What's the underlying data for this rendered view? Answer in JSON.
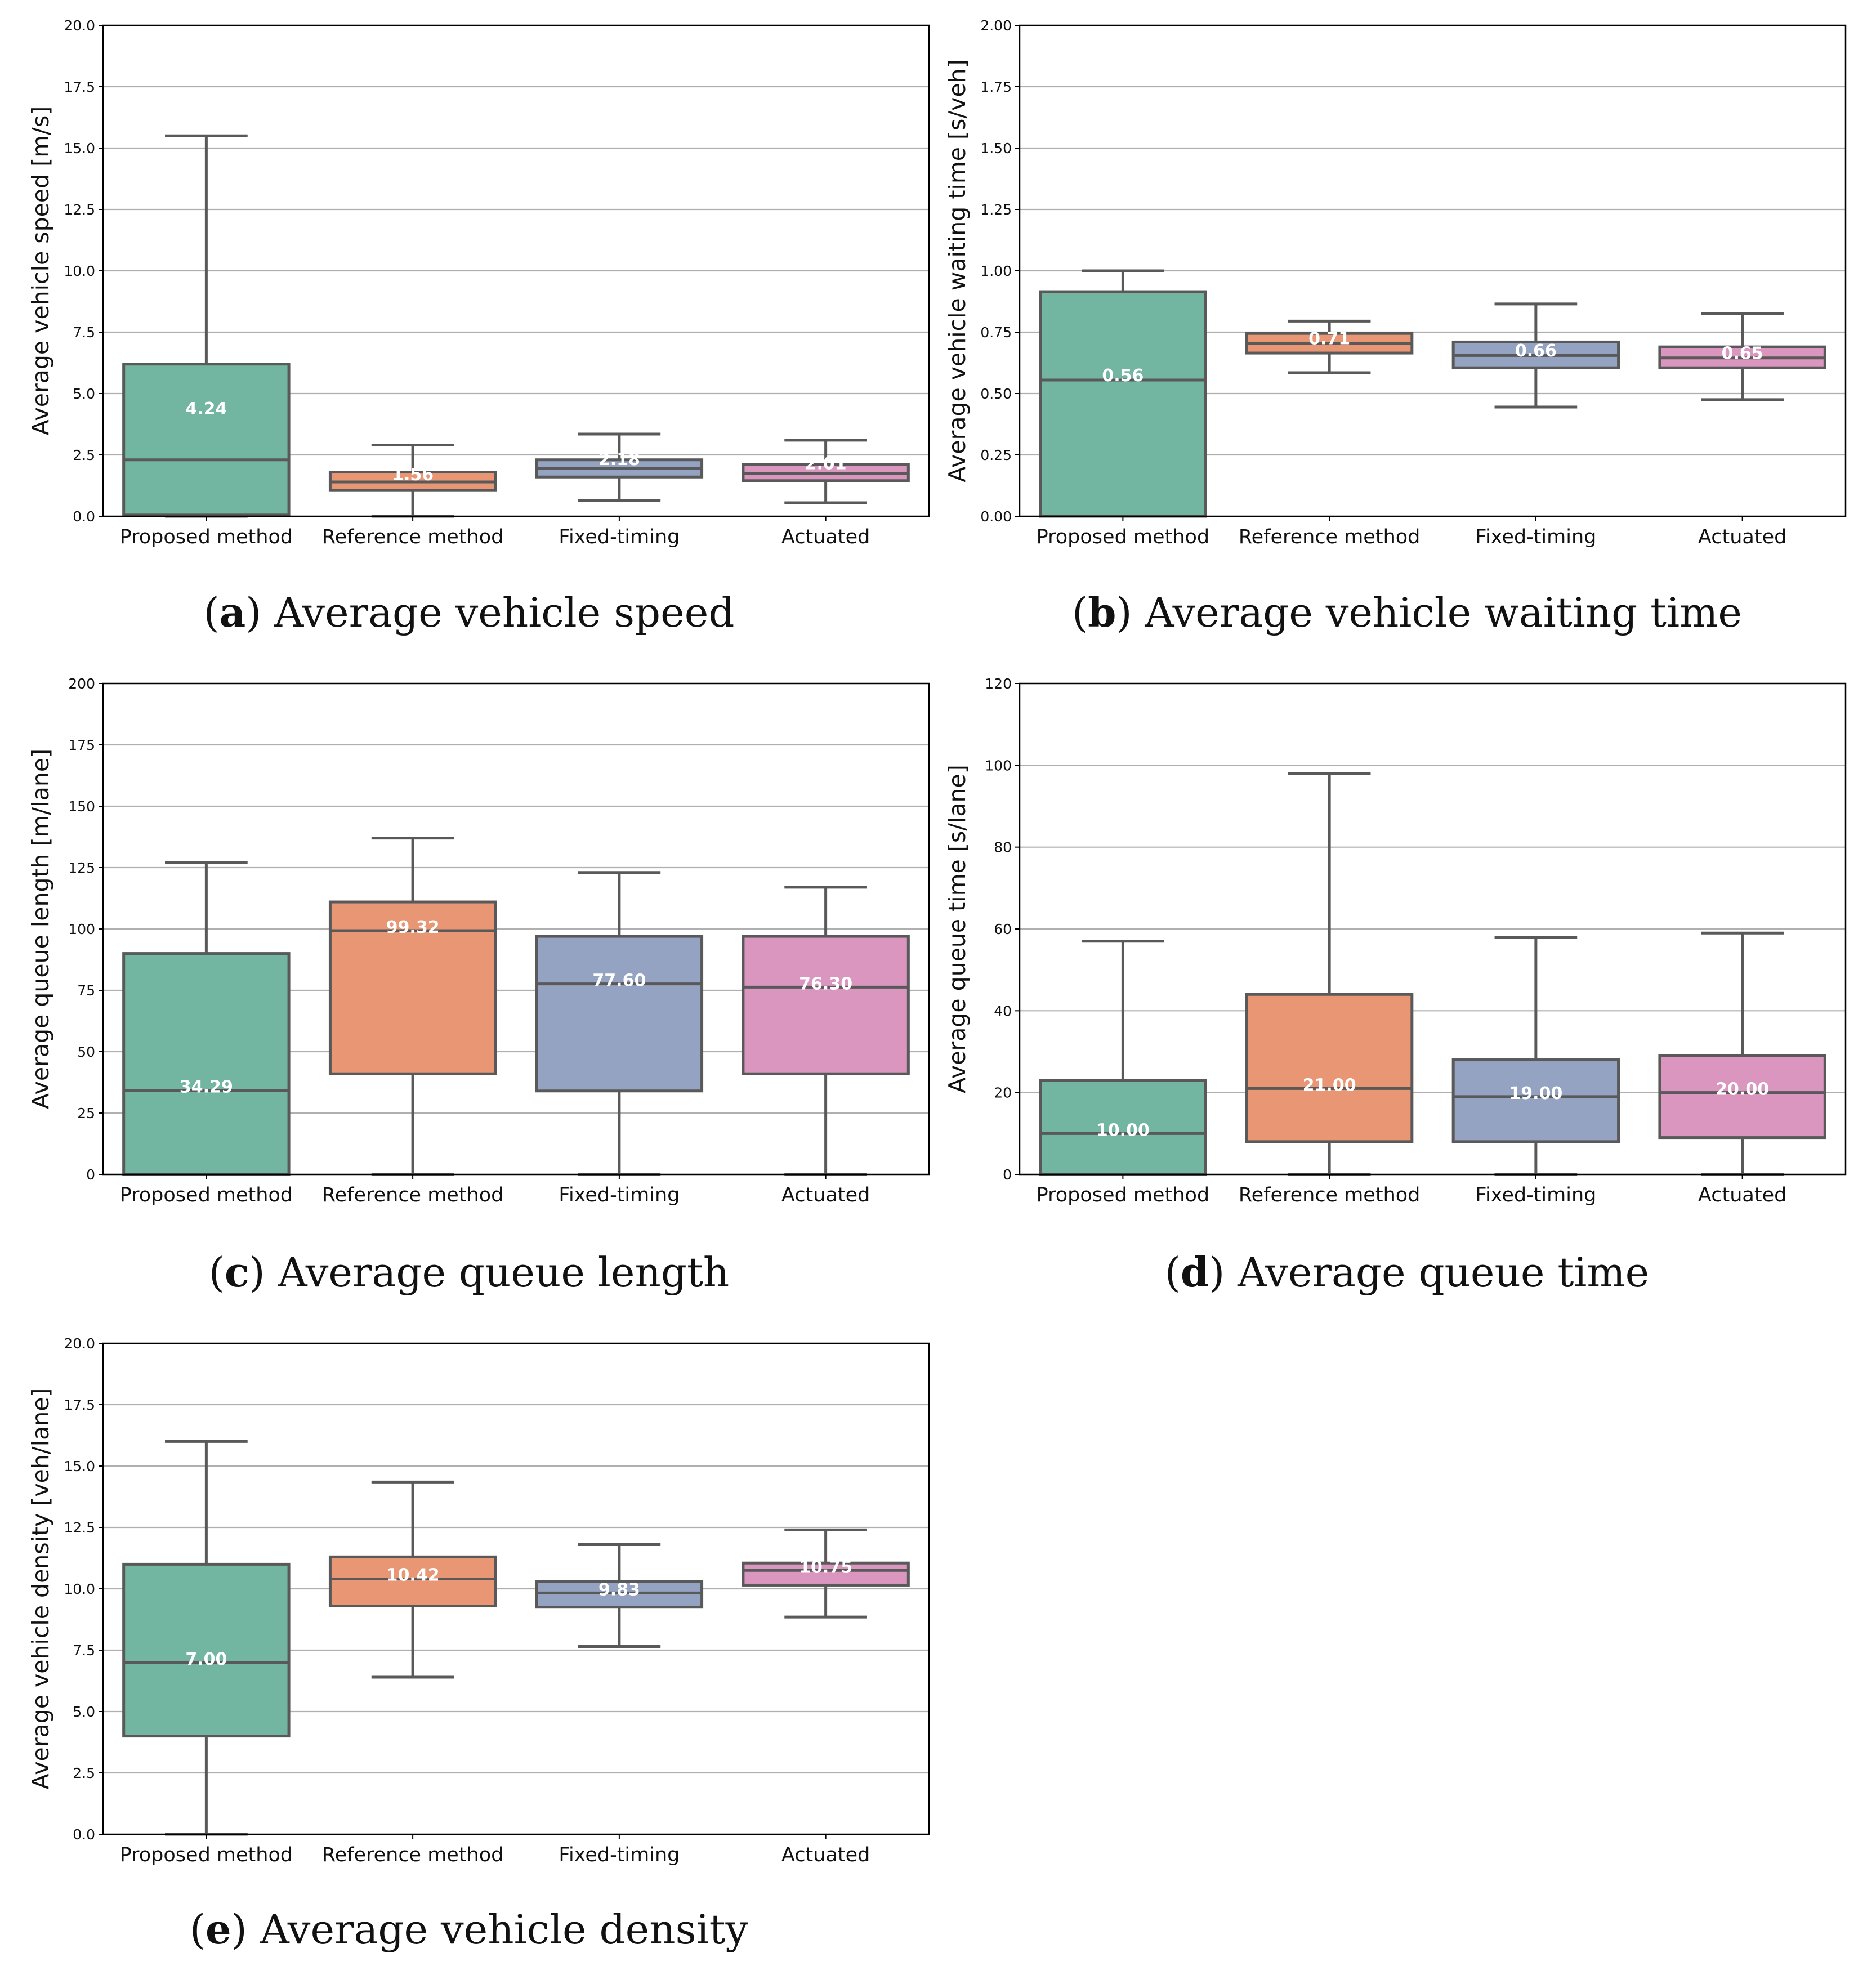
{
  "colors": {
    "box": [
      "#72b6a1",
      "#e99675",
      "#95a3c3",
      "#db96c0"
    ],
    "outline": "#595959",
    "grid": "#b0b0b0"
  },
  "chart_data": [
    {
      "id": "a",
      "type": "box",
      "caption_letter": "a",
      "caption": "Average vehicle speed",
      "ylabel": "Average vehicle speed [m/s]",
      "ylim": [
        0,
        20
      ],
      "yticks": [
        0,
        2.5,
        5,
        7.5,
        10,
        12.5,
        15,
        17.5,
        20
      ],
      "tick_decimals": 1,
      "grid": "y",
      "categories": [
        "Proposed method",
        "Reference method",
        "Fixed-timing",
        "Actuated"
      ],
      "boxes": [
        {
          "whislo": 0,
          "q1": 0.05,
          "med": 2.3,
          "q3": 6.2,
          "whishi": 15.5,
          "mean": 4.24,
          "label": "4.24"
        },
        {
          "whislo": 0,
          "q1": 1.05,
          "med": 1.4,
          "q3": 1.8,
          "whishi": 2.9,
          "mean": 1.56,
          "label": "1.56"
        },
        {
          "whislo": 0.65,
          "q1": 1.6,
          "med": 1.95,
          "q3": 2.3,
          "whishi": 3.35,
          "mean": 2.18,
          "label": "2.18"
        },
        {
          "whislo": 0.55,
          "q1": 1.45,
          "med": 1.75,
          "q3": 2.1,
          "whishi": 3.1,
          "mean": 2.01,
          "label": "2.01"
        }
      ]
    },
    {
      "id": "b",
      "type": "box",
      "caption_letter": "b",
      "caption": "Average vehicle waiting time",
      "ylabel": "Average vehicle waiting time [s/veh]",
      "ylim": [
        0,
        2
      ],
      "yticks": [
        0,
        0.25,
        0.5,
        0.75,
        1,
        1.25,
        1.5,
        1.75,
        2
      ],
      "tick_decimals": 2,
      "grid": "y",
      "categories": [
        "Proposed method",
        "Reference method",
        "Fixed-timing",
        "Actuated"
      ],
      "boxes": [
        {
          "whislo": 0,
          "q1": 0,
          "med": 0.555,
          "q3": 0.915,
          "whishi": 1.0,
          "mean": 0.56,
          "label": "0.56"
        },
        {
          "whislo": 0.585,
          "q1": 0.665,
          "med": 0.705,
          "q3": 0.745,
          "whishi": 0.795,
          "mean": 0.71,
          "label": "0.71"
        },
        {
          "whislo": 0.445,
          "q1": 0.605,
          "med": 0.655,
          "q3": 0.71,
          "whishi": 0.865,
          "mean": 0.66,
          "label": "0.66"
        },
        {
          "whislo": 0.475,
          "q1": 0.605,
          "med": 0.645,
          "q3": 0.69,
          "whishi": 0.825,
          "mean": 0.65,
          "label": "0.65"
        }
      ]
    },
    {
      "id": "c",
      "type": "box",
      "caption_letter": "c",
      "caption": "Average queue length",
      "ylabel": "Average queue length [m/lane]",
      "ylim": [
        0,
        200
      ],
      "yticks": [
        0,
        25,
        50,
        75,
        100,
        125,
        150,
        175,
        200
      ],
      "tick_decimals": 0,
      "grid": "y",
      "categories": [
        "Proposed method",
        "Reference method",
        "Fixed-timing",
        "Actuated"
      ],
      "boxes": [
        {
          "whislo": 0,
          "q1": 0,
          "med": 34.29,
          "q3": 90,
          "whishi": 127,
          "mean": 34.29,
          "label": "34.29"
        },
        {
          "whislo": 0,
          "q1": 41,
          "med": 99.32,
          "q3": 111,
          "whishi": 137,
          "mean": 99.32,
          "label": "99.32"
        },
        {
          "whislo": 0,
          "q1": 34,
          "med": 77.6,
          "q3": 97,
          "whishi": 123,
          "mean": 77.6,
          "label": "77.60"
        },
        {
          "whislo": 0,
          "q1": 41,
          "med": 76.3,
          "q3": 97,
          "whishi": 117,
          "mean": 76.3,
          "label": "76.30"
        }
      ]
    },
    {
      "id": "d",
      "type": "box",
      "caption_letter": "d",
      "caption": "Average queue time",
      "ylabel": "Average queue time [s/lane]",
      "ylim": [
        0,
        120
      ],
      "yticks": [
        0,
        20,
        40,
        60,
        80,
        100,
        120
      ],
      "tick_decimals": 0,
      "grid": "y",
      "categories": [
        "Proposed method",
        "Reference method",
        "Fixed-timing",
        "Actuated"
      ],
      "boxes": [
        {
          "whislo": 0,
          "q1": 0,
          "med": 10,
          "q3": 23,
          "whishi": 57,
          "mean": 10,
          "label": "10.00"
        },
        {
          "whislo": 0,
          "q1": 8,
          "med": 21,
          "q3": 44,
          "whishi": 98,
          "mean": 21,
          "label": "21.00"
        },
        {
          "whislo": 0,
          "q1": 8,
          "med": 19,
          "q3": 28,
          "whishi": 58,
          "mean": 19,
          "label": "19.00"
        },
        {
          "whislo": 0,
          "q1": 9,
          "med": 20,
          "q3": 29,
          "whishi": 59,
          "mean": 20,
          "label": "20.00"
        }
      ]
    },
    {
      "id": "e",
      "type": "box",
      "caption_letter": "e",
      "caption": "Average vehicle density",
      "ylabel": "Average vehicle density [veh/lane]",
      "ylim": [
        0,
        20
      ],
      "yticks": [
        0,
        2.5,
        5,
        7.5,
        10,
        12.5,
        15,
        17.5,
        20
      ],
      "tick_decimals": 1,
      "grid": "y",
      "categories": [
        "Proposed method",
        "Reference method",
        "Fixed-timing",
        "Actuated"
      ],
      "boxes": [
        {
          "whislo": 0,
          "q1": 4,
          "med": 7,
          "q3": 11,
          "whishi": 16,
          "mean": 7,
          "label": "7.00"
        },
        {
          "whislo": 6.4,
          "q1": 9.3,
          "med": 10.4,
          "q3": 11.3,
          "whishi": 14.35,
          "mean": 10.42,
          "label": "10.42"
        },
        {
          "whislo": 7.65,
          "q1": 9.25,
          "med": 9.83,
          "q3": 10.3,
          "whishi": 11.8,
          "mean": 9.83,
          "label": "9.83"
        },
        {
          "whislo": 8.85,
          "q1": 10.15,
          "med": 10.75,
          "q3": 11.05,
          "whishi": 12.4,
          "mean": 10.75,
          "label": "10.75"
        }
      ]
    }
  ]
}
